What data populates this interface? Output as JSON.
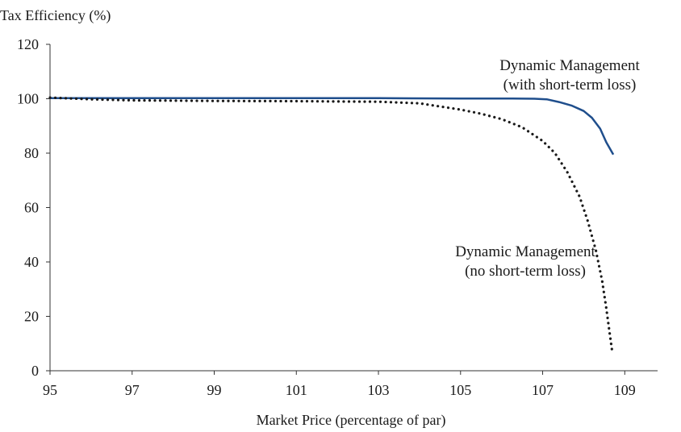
{
  "chart_data": {
    "type": "line",
    "title": "",
    "ylabel": "Tax Efficiency (%)",
    "xlabel": "Market Price (percentage of par)",
    "xlim": [
      95,
      109.8
    ],
    "ylim": [
      0,
      120
    ],
    "x_ticks": [
      95,
      97,
      99,
      101,
      103,
      105,
      107,
      109
    ],
    "y_ticks": [
      0,
      20,
      40,
      60,
      80,
      100,
      120
    ],
    "grid": false,
    "legend": "none",
    "series": [
      {
        "name": "Dynamic Management (with short-term loss)",
        "label_lines": [
          "Dynamic Management",
          "(with short-term loss)"
        ],
        "style": "solid",
        "color": "#1f4e8c",
        "points": [
          [
            95,
            100.2
          ],
          [
            97,
            100.2
          ],
          [
            99,
            100.2
          ],
          [
            101,
            100.2
          ],
          [
            103,
            100.2
          ],
          [
            105,
            100.1
          ],
          [
            106,
            100.1
          ],
          [
            106.8,
            100.0
          ],
          [
            107.1,
            99.8
          ],
          [
            107.4,
            98.8
          ],
          [
            107.7,
            97.5
          ],
          [
            108.0,
            95.5
          ],
          [
            108.2,
            93.0
          ],
          [
            108.4,
            89.0
          ],
          [
            108.55,
            84.0
          ],
          [
            108.72,
            79.5
          ]
        ]
      },
      {
        "name": "Dynamic Management (no short-term loss)",
        "label_lines": [
          "Dynamic Management",
          "(no short-term loss)"
        ],
        "style": "dotted",
        "color": "#1a1a1a",
        "points": [
          [
            95,
            100.4
          ],
          [
            96,
            99.8
          ],
          [
            97,
            99.4
          ],
          [
            99,
            99.2
          ],
          [
            101,
            99.1
          ],
          [
            102,
            99.0
          ],
          [
            103,
            98.9
          ],
          [
            104,
            98.3
          ],
          [
            105,
            96.0
          ],
          [
            105.5,
            94.5
          ],
          [
            106,
            92.5
          ],
          [
            106.5,
            89.5
          ],
          [
            107,
            84.5
          ],
          [
            107.3,
            80.0
          ],
          [
            107.6,
            73.0
          ],
          [
            107.9,
            64.0
          ],
          [
            108.1,
            55.0
          ],
          [
            108.3,
            44.0
          ],
          [
            108.45,
            33.0
          ],
          [
            108.55,
            23.0
          ],
          [
            108.63,
            14.0
          ],
          [
            108.7,
            6.5
          ]
        ]
      }
    ]
  }
}
